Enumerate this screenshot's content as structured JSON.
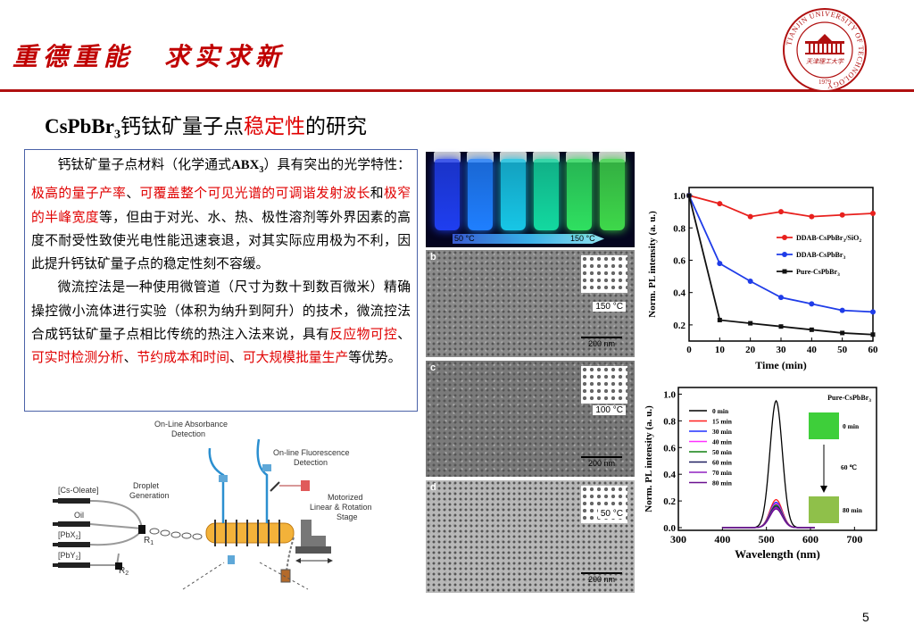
{
  "header": {
    "motto": "重德重能　求实求新",
    "logo": {
      "ring_text": "TIANJIN UNIVERSITY OF TECHNOLOGY",
      "chinese_name": "天津理工大学",
      "year": "1979"
    }
  },
  "title": {
    "formula": "CsPbBr",
    "subscript": "3",
    "part1": "钙钛矿量子点",
    "highlight": "稳定性",
    "part2": "的研究"
  },
  "paragraph1": {
    "intro": "钙钛矿量子点材料（化学通式",
    "formula": "ABX",
    "formula_sub": "3",
    "mid": "）具有突出的光学特性：",
    "hl1": "极高的量子产率",
    "sep1": "、",
    "hl2": "可覆盖整个可见光谱的可调谐发射波长",
    "sep2": "和",
    "hl3": "极窄的半峰宽度",
    "rest": "等，但由于对光、水、热、极性溶剂等外界因素的高度不耐受性致使光电性能迅速衰退，对其实际应用极为不利，因此提升钙钛矿量子点的稳定性刻不容缓。"
  },
  "paragraph2": {
    "text": "微流控法是一种使用微管道（尺寸为数十到数百微米）精确操控微小流体进行实验（体积为纳升到阿升）的技术，微流控法合成钙钛矿量子点相比传统的热注入法来说，具有",
    "hl1": "反应物可控",
    "sep1": "、",
    "hl2": "可实时检测分析",
    "sep2": "、",
    "hl3": "节约成本和时间",
    "sep3": "、",
    "hl4": "可大规模批量生产",
    "end": "等优势。"
  },
  "diagram": {
    "online_absorbance": "On-Line Absorbance",
    "online_absorbance2": "Detection",
    "online_fluorescence": "On-line Fluorescence",
    "online_fluorescence2": "Detection",
    "droplet": "Droplet",
    "droplet2": "Generation",
    "cs_oleate": "[Cs-Oleate]",
    "oil": "Oil",
    "pbx": "[PbX",
    "pbx_sub": "2",
    "pby": "[PbY",
    "pby_sub": "2",
    "r1": "R",
    "r1_sub": "1",
    "r2": "R",
    "r2_sub": "2",
    "motorized": "Motorized",
    "motorized2": "Linear & Rotation",
    "motorized3": "Stage"
  },
  "photo": {
    "temp_left": "50 °C",
    "temp_right": "150 °C",
    "vial_colors": [
      "#1f3ef0",
      "#1f7fff",
      "#17c6e6",
      "#13d9a0",
      "#2fe060",
      "#3ed84a"
    ]
  },
  "tem_panels": [
    {
      "label": "b",
      "temp": "150 °C",
      "scale": "200 nm"
    },
    {
      "label": "c",
      "temp": "100 °C",
      "scale": "200 nm"
    },
    {
      "label": "d",
      "temp": "50 °C",
      "scale": "200 nm"
    }
  ],
  "chart_data": [
    {
      "type": "line",
      "xlabel": "Time (min)",
      "ylabel": "Norm. PL intensity (a. u.)",
      "xlim": [
        0,
        60
      ],
      "ylim": [
        0.1,
        1.05
      ],
      "xticks": [
        "0",
        "10",
        "20",
        "30",
        "40",
        "50",
        "60"
      ],
      "yticks": [
        "0.2",
        "0.4",
        "0.6",
        "0.8",
        "1.0"
      ],
      "x": [
        0,
        10,
        20,
        30,
        40,
        50,
        60
      ],
      "series": [
        {
          "name": "DDAB-CsPbBr",
          "name_sub": "3",
          "name_tail": "/SiO",
          "name_tail_sub": "2",
          "color": "#e8201d",
          "marker": "circle",
          "values": [
            1.0,
            0.95,
            0.87,
            0.9,
            0.87,
            0.88,
            0.89
          ]
        },
        {
          "name": "DDAB-CsPbBr",
          "name_sub": "3",
          "name_tail": "",
          "name_tail_sub": "",
          "color": "#1f3ce8",
          "marker": "circle",
          "values": [
            1.0,
            0.58,
            0.47,
            0.37,
            0.33,
            0.29,
            0.28
          ]
        },
        {
          "name": "Pure-CsPbBr",
          "name_sub": "3",
          "name_tail": "",
          "name_tail_sub": "",
          "color": "#111111",
          "marker": "square",
          "values": [
            1.0,
            0.23,
            0.21,
            0.19,
            0.17,
            0.15,
            0.14
          ]
        }
      ],
      "legend": "right",
      "grid": false
    },
    {
      "type": "line",
      "title": "Pure-CsPbBr",
      "title_sub": "3",
      "xlabel": "Wavelength (nm)",
      "ylabel": "Norm. PL intensity (a. u.)",
      "xlim": [
        300,
        750
      ],
      "ylim": [
        -0.02,
        1.05
      ],
      "xticks": [
        "300",
        "400",
        "500",
        "600",
        "700"
      ],
      "yticks": [
        "0.0",
        "0.2",
        "0.4",
        "0.6",
        "0.8",
        "1.0"
      ],
      "peak_center": 522,
      "peak_width": 14,
      "series": [
        {
          "name": "0 min",
          "color": "#000000",
          "peak": 0.95
        },
        {
          "name": "15 min",
          "color": "#ff2020",
          "peak": 0.21
        },
        {
          "name": "30 min",
          "color": "#2030ff",
          "peak": 0.19
        },
        {
          "name": "40 min",
          "color": "#ff30ff",
          "peak": 0.18
        },
        {
          "name": "50 min",
          "color": "#108010",
          "peak": 0.17
        },
        {
          "name": "60 min",
          "color": "#202060",
          "peak": 0.16
        },
        {
          "name": "70 min",
          "color": "#9020c0",
          "peak": 0.15
        },
        {
          "name": "80 min",
          "color": "#6a1090",
          "peak": 0.14
        }
      ],
      "inset": {
        "top_label": "0 min",
        "mid_label": "60 ℃",
        "bottom_label": "80 min",
        "top_color": "#3ecf3a",
        "bottom_color": "#8fc04a"
      },
      "legend": "top-left"
    }
  ],
  "page_number": "5"
}
